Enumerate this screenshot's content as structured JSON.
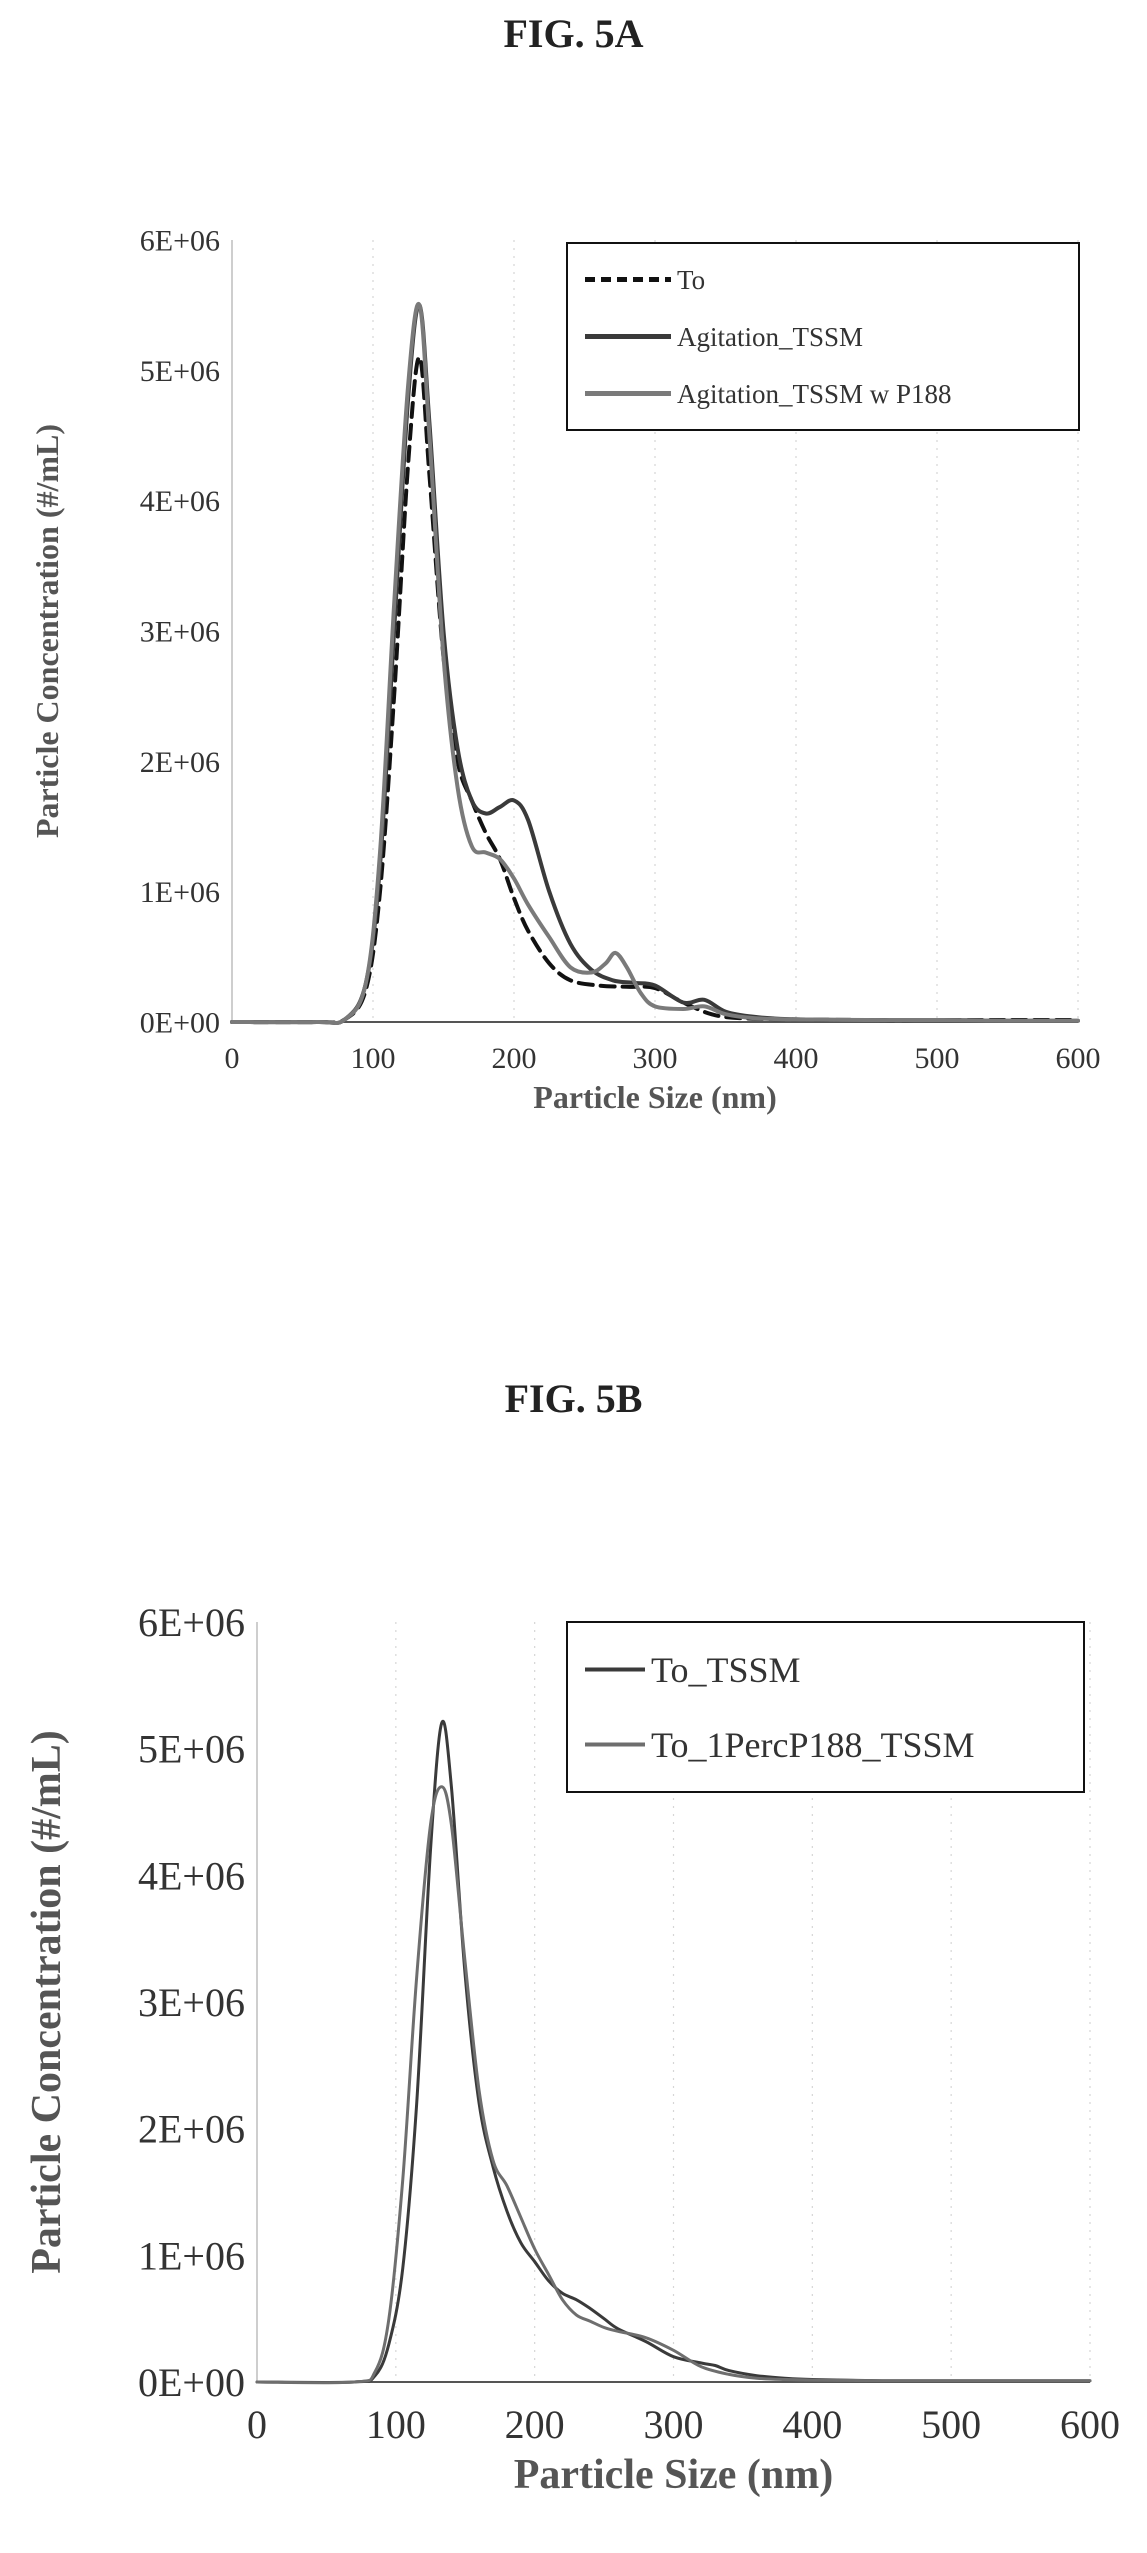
{
  "figures": {
    "a": {
      "title": "FIG. 5A"
    },
    "b": {
      "title": "FIG. 5B"
    }
  },
  "chart_data": [
    {
      "type": "line",
      "xlabel": "Particle Size (nm)",
      "ylabel": "Particle Concentration (#/mL)",
      "xlim": [
        0,
        600
      ],
      "ylim": [
        0,
        6000000
      ],
      "xticks": [
        "0",
        "100",
        "200",
        "300",
        "400",
        "500",
        "600"
      ],
      "yticks": [
        "0E+00",
        "1E+06",
        "2E+06",
        "3E+06",
        "4E+06",
        "5E+06",
        "6E+06"
      ],
      "grid": "vertical",
      "legend_position": "top-right",
      "series": [
        {
          "name": "To",
          "color": "#111111",
          "style": "dashed",
          "x": [
            0,
            60,
            80,
            95,
            105,
            115,
            125,
            133,
            140,
            150,
            160,
            170,
            180,
            190,
            200,
            210,
            225,
            240,
            260,
            280,
            300,
            320,
            340,
            360,
            400,
            450,
            500,
            550,
            600
          ],
          "y": [
            0,
            0,
            20000,
            250000,
            1000000,
            2500000,
            4300000,
            5100000,
            4200000,
            2800000,
            2000000,
            1700000,
            1450000,
            1250000,
            950000,
            700000,
            450000,
            320000,
            280000,
            270000,
            260000,
            150000,
            60000,
            30000,
            20000,
            15000,
            15000,
            15000,
            15000
          ]
        },
        {
          "name": "Agitation_TSSM",
          "color": "#3a3a3a",
          "style": "solid",
          "x": [
            0,
            60,
            80,
            95,
            105,
            115,
            125,
            133,
            140,
            150,
            160,
            170,
            180,
            190,
            200,
            210,
            225,
            240,
            255,
            270,
            285,
            300,
            320,
            335,
            350,
            370,
            400,
            450,
            500,
            550,
            600
          ],
          "y": [
            0,
            0,
            20000,
            300000,
            1200000,
            3000000,
            4800000,
            5500000,
            4600000,
            3000000,
            2100000,
            1700000,
            1600000,
            1650000,
            1700000,
            1550000,
            1000000,
            600000,
            400000,
            320000,
            300000,
            280000,
            150000,
            170000,
            80000,
            40000,
            20000,
            15000,
            15000,
            10000,
            10000
          ]
        },
        {
          "name": "Agitation_TSSM w P188",
          "color": "#7a7a7a",
          "style": "solid",
          "x": [
            0,
            60,
            80,
            95,
            105,
            115,
            125,
            133,
            140,
            150,
            160,
            170,
            180,
            190,
            200,
            210,
            225,
            240,
            255,
            265,
            272,
            280,
            290,
            300,
            320,
            335,
            350,
            370,
            400,
            450,
            500,
            550,
            600
          ],
          "y": [
            0,
            0,
            20000,
            300000,
            1300000,
            3200000,
            4900000,
            5500000,
            4500000,
            2800000,
            1800000,
            1350000,
            1300000,
            1250000,
            1100000,
            900000,
            650000,
            420000,
            380000,
            450000,
            530000,
            420000,
            220000,
            120000,
            100000,
            120000,
            60000,
            30000,
            20000,
            15000,
            15000,
            10000,
            10000
          ]
        }
      ]
    },
    {
      "type": "line",
      "xlabel": "Particle Size (nm)",
      "ylabel": "Particle Concentration (#/mL)",
      "xlim": [
        0,
        600
      ],
      "ylim": [
        0,
        6000000
      ],
      "xticks": [
        "0",
        "100",
        "200",
        "300",
        "400",
        "500",
        "600"
      ],
      "yticks": [
        "0E+00",
        "1E+06",
        "2E+06",
        "3E+06",
        "4E+06",
        "5E+06",
        "6E+06"
      ],
      "grid": "vertical",
      "legend_position": "top-right",
      "series": [
        {
          "name": "To_TSSM",
          "color": "#3a3a3a",
          "style": "solid",
          "x": [
            0,
            70,
            85,
            95,
            105,
            115,
            125,
            133,
            140,
            150,
            160,
            170,
            180,
            190,
            200,
            210,
            220,
            230,
            240,
            250,
            260,
            280,
            300,
            320,
            330,
            340,
            360,
            380,
            400,
            450,
            500,
            550,
            600
          ],
          "y": [
            0,
            0,
            50000,
            300000,
            900000,
            2200000,
            4200000,
            5200000,
            4700000,
            3200000,
            2200000,
            1700000,
            1350000,
            1100000,
            950000,
            800000,
            700000,
            650000,
            580000,
            500000,
            420000,
            320000,
            200000,
            150000,
            130000,
            90000,
            50000,
            30000,
            20000,
            10000,
            10000,
            10000,
            10000
          ]
        },
        {
          "name": "To_1PercP188_TSSM",
          "color": "#6e6e6e",
          "style": "solid",
          "x": [
            0,
            70,
            85,
            95,
            105,
            115,
            125,
            133,
            140,
            150,
            160,
            170,
            180,
            190,
            200,
            210,
            220,
            230,
            240,
            250,
            260,
            280,
            300,
            320,
            340,
            360,
            380,
            400,
            450,
            500,
            550,
            600
          ],
          "y": [
            0,
            0,
            80000,
            500000,
            1600000,
            3200000,
            4400000,
            4700000,
            4400000,
            3300000,
            2300000,
            1750000,
            1550000,
            1300000,
            1050000,
            850000,
            650000,
            530000,
            480000,
            430000,
            400000,
            350000,
            250000,
            120000,
            60000,
            30000,
            20000,
            15000,
            10000,
            10000,
            10000,
            10000
          ]
        }
      ]
    }
  ]
}
